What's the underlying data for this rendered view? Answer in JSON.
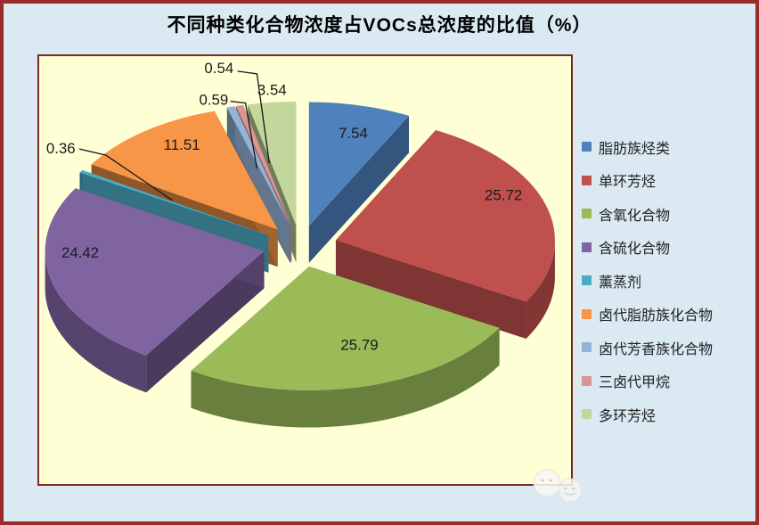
{
  "window": {
    "background_color": "#dae9f2",
    "outer_border_color": "#9a2b28",
    "plot_background_color": "#ffffd5",
    "plot_border_color": "#7b2726"
  },
  "chart_data": {
    "type": "pie",
    "style": "3d-exploded",
    "title": "不同种类化合物浓度占VOCs总浓度的比值（%）",
    "unit": "%",
    "legend_position": "right",
    "start_angle_deg": 0,
    "direction": "clockwise",
    "series": [
      {
        "name": "脂肪族烃类",
        "value": 7.54,
        "color": "#4f81bd"
      },
      {
        "name": "单环芳烃",
        "value": 25.72,
        "color": "#c0504d"
      },
      {
        "name": "含氧化合物",
        "value": 25.79,
        "color": "#9bbb59"
      },
      {
        "name": "含硫化合物",
        "value": 24.42,
        "color": "#8064a2"
      },
      {
        "name": "薰蒸剂",
        "value": 0.36,
        "color": "#4bacc6"
      },
      {
        "name": "卤代脂肪族化合物",
        "value": 11.51,
        "color": "#f79646"
      },
      {
        "name": "卤代芳香族化合物",
        "value": 0.59,
        "color": "#95b3d7"
      },
      {
        "name": "三卤代甲烷",
        "value": 0.54,
        "color": "#d99694"
      },
      {
        "name": "多环芳烃",
        "value": 3.54,
        "color": "#c3d69b"
      }
    ],
    "data_label_color": "#1a1a1a"
  },
  "watermark": {
    "description": "faint cartoon faces sticker"
  }
}
